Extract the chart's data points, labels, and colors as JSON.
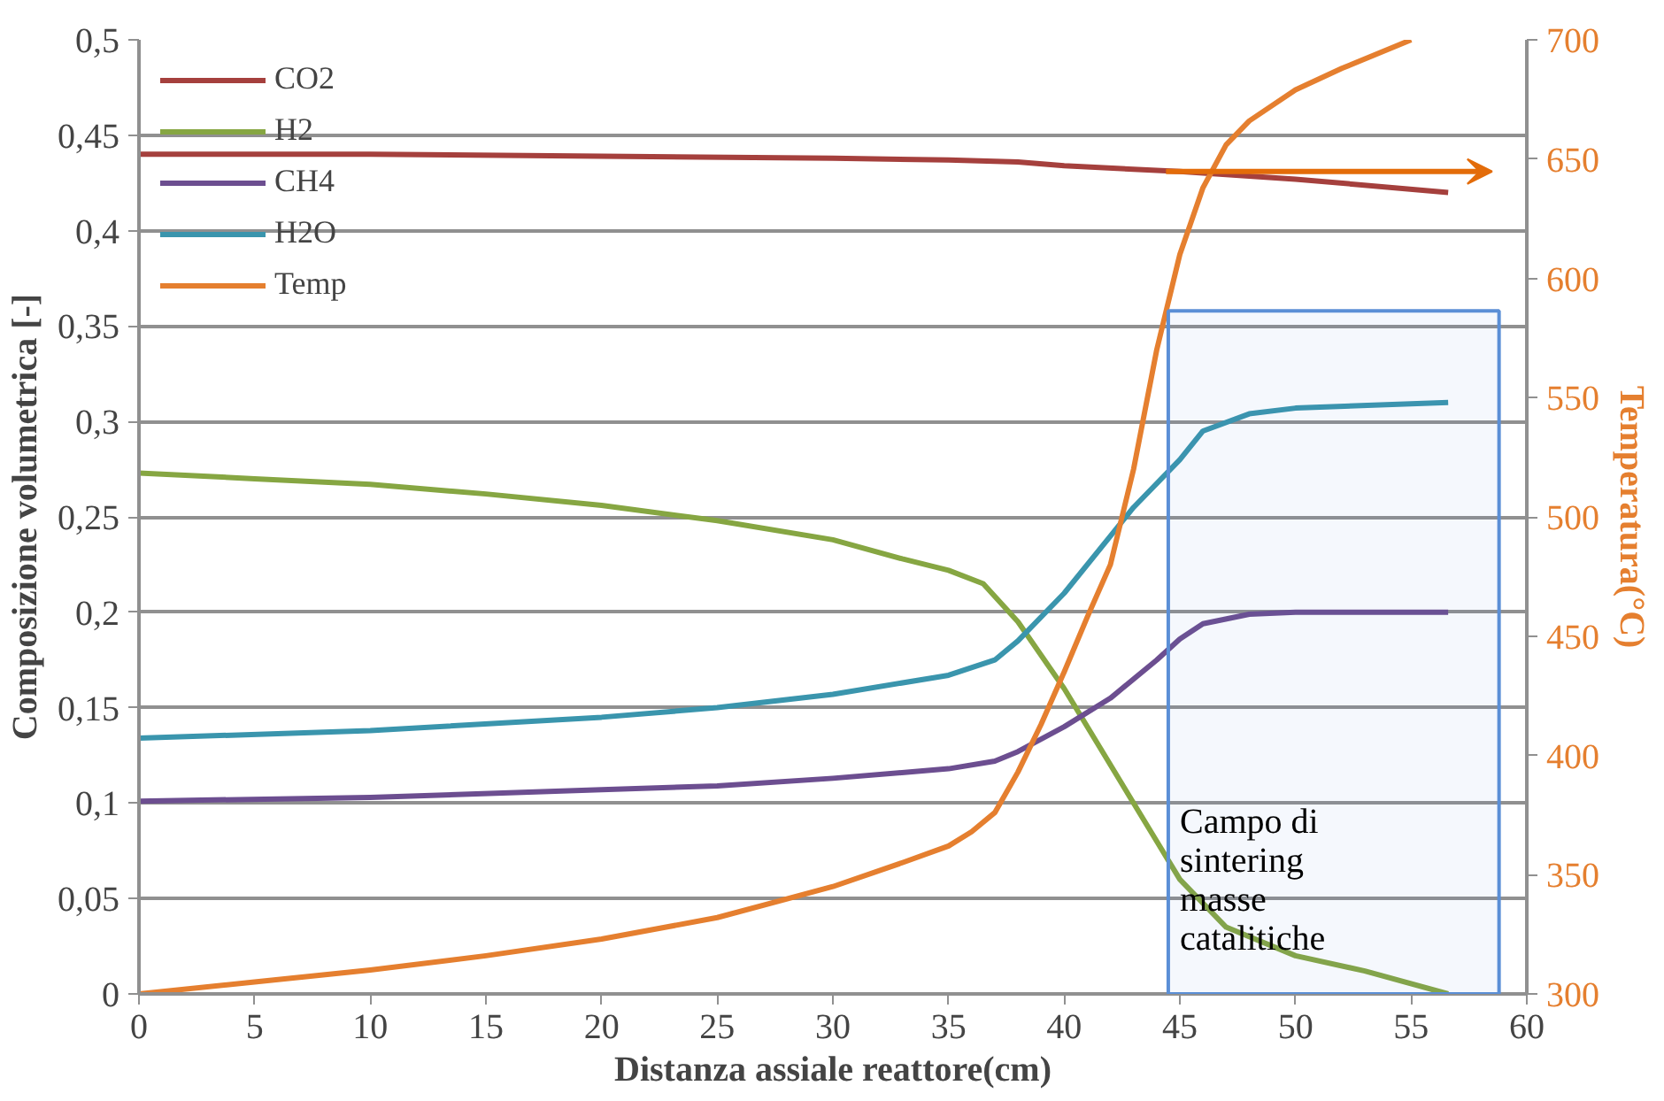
{
  "chart_data": {
    "type": "line",
    "xlabel": "Distanza assiale reattore(cm)",
    "ylabel": "Composizione volumetrica [-]",
    "y2label": "Temperatura(°C)",
    "xlim": [
      0,
      60
    ],
    "xticks": [
      0,
      5,
      10,
      15,
      20,
      25,
      30,
      35,
      40,
      45,
      50,
      55,
      60
    ],
    "ylim": [
      0,
      0.5
    ],
    "yticks": [
      {
        "value": 0,
        "label": "0"
      },
      {
        "value": 0.05,
        "label": "0,05"
      },
      {
        "value": 0.1,
        "label": "0,1"
      },
      {
        "value": 0.15,
        "label": "0,15"
      },
      {
        "value": 0.2,
        "label": "0,2"
      },
      {
        "value": 0.25,
        "label": "0,25"
      },
      {
        "value": 0.3,
        "label": "0,3"
      },
      {
        "value": 0.35,
        "label": "0,35"
      },
      {
        "value": 0.4,
        "label": "0,4"
      },
      {
        "value": 0.45,
        "label": "0,45"
      },
      {
        "value": 0.5,
        "label": "0,5"
      }
    ],
    "y2lim": [
      300,
      700
    ],
    "y2ticks": [
      300,
      350,
      400,
      450,
      500,
      550,
      600,
      650,
      700
    ],
    "grid": "y",
    "legend": "top left",
    "marker": "none",
    "line_style": "solid",
    "bands": [
      {
        "axis": "x",
        "from": 44.5,
        "to": 58.8,
        "label": "Campo di sintering masse catalitiche",
        "color": "#5b8fd6"
      }
    ],
    "series": [
      {
        "name": "CO2",
        "color": "#a5403d",
        "x": [
          0,
          10,
          20,
          30,
          35,
          38,
          40,
          45,
          50,
          56.6
        ],
        "values": [
          0.44,
          0.44,
          0.439,
          0.438,
          0.437,
          0.436,
          0.434,
          0.431,
          0.427,
          0.42
        ]
      },
      {
        "name": "H2",
        "color": "#86a642",
        "x": [
          0,
          5,
          10,
          15,
          20,
          25,
          30,
          33,
          35,
          36.5,
          38,
          40,
          42,
          44,
          45,
          47,
          50,
          53,
          56.6
        ],
        "values": [
          0.273,
          0.27,
          0.267,
          0.262,
          0.256,
          0.248,
          0.238,
          0.228,
          0.222,
          0.215,
          0.195,
          0.16,
          0.12,
          0.08,
          0.06,
          0.035,
          0.02,
          0.012,
          0.0
        ]
      },
      {
        "name": "CH4",
        "color": "#6c4e90",
        "x": [
          0,
          10,
          20,
          25,
          30,
          35,
          37,
          38,
          40,
          42,
          44,
          45,
          46,
          48,
          50,
          56.6
        ],
        "values": [
          0.101,
          0.103,
          0.107,
          0.109,
          0.113,
          0.118,
          0.122,
          0.127,
          0.14,
          0.155,
          0.175,
          0.186,
          0.194,
          0.199,
          0.2,
          0.2
        ]
      },
      {
        "name": "H2O",
        "color": "#3a95ad",
        "x": [
          0,
          10,
          20,
          25,
          30,
          35,
          37,
          38,
          40,
          42,
          43,
          45,
          46,
          48,
          50,
          56.6
        ],
        "values": [
          0.134,
          0.138,
          0.145,
          0.15,
          0.157,
          0.167,
          0.175,
          0.185,
          0.21,
          0.24,
          0.255,
          0.28,
          0.295,
          0.304,
          0.307,
          0.31
        ]
      },
      {
        "name": "Temp",
        "color": "#e57f2f",
        "axis": "y2",
        "x": [
          0,
          5,
          10,
          15,
          20,
          25,
          30,
          33,
          35,
          36,
          37,
          38,
          39,
          40,
          41,
          42,
          43,
          44,
          45,
          46,
          47,
          48,
          50,
          52,
          55
        ],
        "values": [
          300,
          305,
          310,
          316,
          323,
          332,
          345,
          355,
          362,
          368,
          376,
          393,
          413,
          435,
          458,
          480,
          520,
          570,
          610,
          638,
          656,
          666,
          679,
          688,
          700
        ]
      }
    ]
  }
}
